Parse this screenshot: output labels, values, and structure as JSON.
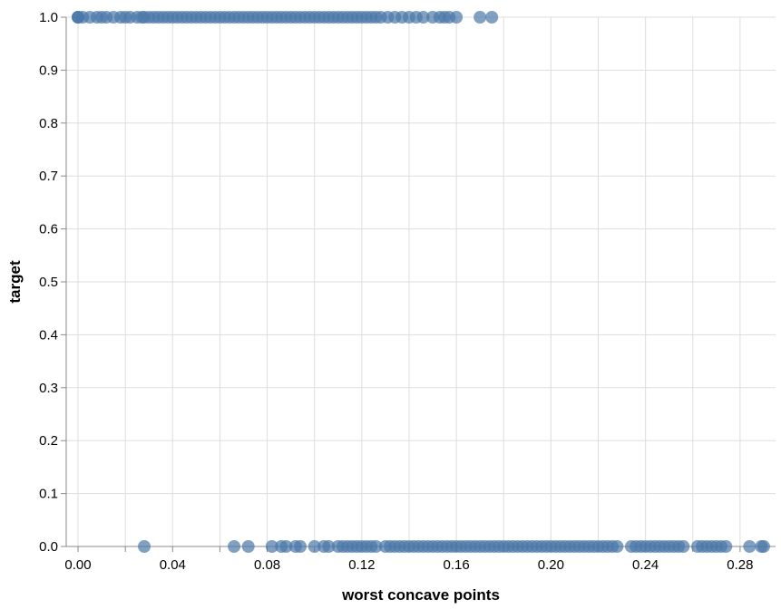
{
  "chart_data": {
    "type": "scatter",
    "title": "",
    "xlabel": "worst concave points",
    "ylabel": "target",
    "xlim": [
      -0.005,
      0.295
    ],
    "ylim": [
      0,
      1
    ],
    "x_ticks": [
      {
        "value": 0.0,
        "label": "0.00"
      },
      {
        "value": 0.04,
        "label": "0.04"
      },
      {
        "value": 0.08,
        "label": "0.08"
      },
      {
        "value": 0.12,
        "label": "0.12"
      },
      {
        "value": 0.16,
        "label": "0.16"
      },
      {
        "value": 0.2,
        "label": "0.20"
      },
      {
        "value": 0.24,
        "label": "0.24"
      },
      {
        "value": 0.28,
        "label": "0.28"
      }
    ],
    "x_minor_ticks": [
      0.02,
      0.06,
      0.1,
      0.14,
      0.18,
      0.22,
      0.26
    ],
    "y_ticks": [
      {
        "value": 0.0,
        "label": "0.0"
      },
      {
        "value": 0.1,
        "label": "0.1"
      },
      {
        "value": 0.2,
        "label": "0.2"
      },
      {
        "value": 0.3,
        "label": "0.3"
      },
      {
        "value": 0.4,
        "label": "0.4"
      },
      {
        "value": 0.5,
        "label": "0.5"
      },
      {
        "value": 0.6,
        "label": "0.6"
      },
      {
        "value": 0.7,
        "label": "0.7"
      },
      {
        "value": 0.8,
        "label": "0.8"
      },
      {
        "value": 0.9,
        "label": "0.9"
      },
      {
        "value": 1.0,
        "label": "1.0"
      }
    ],
    "grid": true,
    "point_color": "#4c78a8",
    "series": [
      {
        "target": 1,
        "x": [
          0.0,
          0.0,
          0.0,
          0.002,
          0.005,
          0.008,
          0.01,
          0.012,
          0.015,
          0.018,
          0.02,
          0.022,
          0.025,
          0.027,
          0.028,
          0.03,
          0.032,
          0.034,
          0.036,
          0.038,
          0.04,
          0.042,
          0.044,
          0.046,
          0.048,
          0.05,
          0.052,
          0.054,
          0.056,
          0.058,
          0.06,
          0.062,
          0.064,
          0.066,
          0.068,
          0.07,
          0.072,
          0.074,
          0.076,
          0.078,
          0.08,
          0.082,
          0.084,
          0.086,
          0.088,
          0.09,
          0.092,
          0.094,
          0.096,
          0.098,
          0.1,
          0.102,
          0.104,
          0.106,
          0.108,
          0.11,
          0.112,
          0.114,
          0.116,
          0.118,
          0.12,
          0.122,
          0.124,
          0.126,
          0.128,
          0.131,
          0.134,
          0.137,
          0.14,
          0.143,
          0.146,
          0.15,
          0.153,
          0.155,
          0.157,
          0.16,
          0.17,
          0.175
        ]
      },
      {
        "target": 0,
        "x": [
          0.028,
          0.066,
          0.072,
          0.082,
          0.086,
          0.088,
          0.092,
          0.094,
          0.1,
          0.104,
          0.106,
          0.11,
          0.112,
          0.114,
          0.116,
          0.118,
          0.12,
          0.122,
          0.124,
          0.126,
          0.13,
          0.132,
          0.134,
          0.136,
          0.138,
          0.14,
          0.142,
          0.144,
          0.146,
          0.148,
          0.15,
          0.152,
          0.154,
          0.156,
          0.158,
          0.16,
          0.162,
          0.164,
          0.166,
          0.168,
          0.17,
          0.172,
          0.174,
          0.176,
          0.178,
          0.18,
          0.182,
          0.184,
          0.186,
          0.188,
          0.19,
          0.192,
          0.194,
          0.196,
          0.198,
          0.2,
          0.202,
          0.204,
          0.206,
          0.208,
          0.21,
          0.212,
          0.214,
          0.216,
          0.218,
          0.22,
          0.222,
          0.224,
          0.226,
          0.228,
          0.234,
          0.236,
          0.238,
          0.24,
          0.242,
          0.244,
          0.246,
          0.248,
          0.25,
          0.252,
          0.254,
          0.256,
          0.262,
          0.264,
          0.266,
          0.268,
          0.27,
          0.272,
          0.274,
          0.284,
          0.289,
          0.29
        ]
      }
    ]
  }
}
